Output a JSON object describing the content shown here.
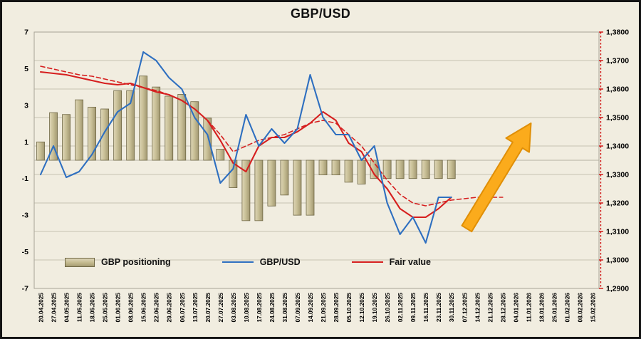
{
  "title": "GBP/USD",
  "legend": {
    "positioning": "GBP positioning",
    "pair": "GBP/USD",
    "fair": "Fair value"
  },
  "colors": {
    "background": "#f1ede0",
    "grid": "#c6c2b2",
    "plot_border": "#a8a496",
    "bar_fill_light": "#ddd5b6",
    "bar_fill_mid": "#c9c097",
    "bar_fill_dark": "#a29871",
    "bar_edge": "#6f6744",
    "line_pair": "#2e6fc0",
    "line_fair": "#d61f1f",
    "right_axis_ticks": "#cc0000",
    "arrow_fill": "#fbab1c",
    "arrow_edge": "#e08f07",
    "text": "#000000"
  },
  "chart_data": {
    "type": "bar+line combo, dual axis",
    "title": "GBP/USD",
    "categories": [
      "20.04.2025",
      "27.04.2025",
      "04.05.2025",
      "11.05.2025",
      "18.05.2025",
      "25.05.2025",
      "01.06.2025",
      "08.06.2025",
      "15.06.2025",
      "22.06.2025",
      "29.06.2025",
      "06.07.2025",
      "13.07.2025",
      "20.07.2025",
      "27.07.2025",
      "03.08.2025",
      "10.08.2025",
      "17.08.2025",
      "24.08.2025",
      "31.08.2025",
      "07.09.2025",
      "14.09.2025",
      "21.09.2025",
      "28.09.2025",
      "05.10.2025",
      "12.10.2025",
      "19.10.2025",
      "26.10.2025",
      "02.11.2025",
      "09.11.2025",
      "16.11.2025",
      "23.11.2025",
      "30.11.2025",
      "07.12.2025",
      "14.12.2025",
      "21.12.2025",
      "28.12.2025",
      "04.01.2026",
      "11.01.2026",
      "18.01.2026",
      "25.01.2026",
      "01.02.2026",
      "08.02.2026",
      "15.02.2026"
    ],
    "left_axis": {
      "min": -7,
      "max": 7,
      "ticks": [
        7,
        5,
        3,
        1,
        -1,
        -3,
        -5,
        -7
      ]
    },
    "right_axis": {
      "min": 1.29,
      "max": 1.38,
      "tick_step": 0.01,
      "tick_labels": [
        "1,3800",
        "1,3700",
        "1,3600",
        "1,3500",
        "1,3400",
        "1,3300",
        "1,3200",
        "1,3100",
        "1,3000",
        "1,2900"
      ]
    },
    "series": [
      {
        "name": "GBP positioning",
        "type": "bar",
        "axis": "left",
        "color": "#c9c097",
        "values": [
          1.0,
          2.6,
          2.5,
          3.3,
          2.9,
          2.8,
          3.8,
          3.8,
          4.6,
          4.0,
          3.5,
          3.6,
          3.2,
          2.3,
          0.6,
          -1.5,
          -3.3,
          -3.3,
          -2.5,
          -1.9,
          -3.0,
          -3.0,
          -0.8,
          -0.8,
          -1.2,
          -1.3,
          -1.0,
          -1.0,
          -1.0,
          -1.0,
          -1.0,
          -1.0,
          -1.0
        ]
      },
      {
        "name": "Fair value (model, dashed)",
        "type": "line-dashed",
        "axis": "right",
        "color": "#d61f1f",
        "values": [
          1.368,
          1.367,
          1.366,
          1.365,
          1.3645,
          1.3635,
          1.3625,
          1.3615,
          1.3605,
          1.3595,
          1.358,
          1.356,
          1.353,
          1.349,
          1.344,
          1.338,
          1.34,
          1.342,
          1.343,
          1.344,
          1.346,
          1.348,
          1.349,
          1.348,
          1.344,
          1.34,
          1.334,
          1.328,
          1.323,
          1.32,
          1.319,
          1.32,
          1.321,
          1.3215,
          1.322,
          1.322,
          1.322
        ]
      },
      {
        "name": "Fair value",
        "type": "line",
        "axis": "right",
        "color": "#d61f1f",
        "values": [
          1.366,
          1.3655,
          1.365,
          1.364,
          1.363,
          1.362,
          1.3615,
          1.362,
          1.3605,
          1.359,
          1.358,
          1.356,
          1.353,
          1.349,
          1.342,
          1.334,
          1.331,
          1.34,
          1.343,
          1.343,
          1.345,
          1.348,
          1.352,
          1.349,
          1.341,
          1.338,
          1.33,
          1.325,
          1.318,
          1.315,
          1.315,
          1.318,
          1.322
        ]
      },
      {
        "name": "GBP/USD",
        "type": "line",
        "axis": "right",
        "color": "#2e6fc0",
        "values": [
          1.33,
          1.34,
          1.329,
          1.331,
          1.337,
          1.345,
          1.352,
          1.355,
          1.373,
          1.37,
          1.364,
          1.36,
          1.35,
          1.344,
          1.327,
          1.332,
          1.351,
          1.34,
          1.346,
          1.341,
          1.346,
          1.365,
          1.35,
          1.344,
          1.344,
          1.335,
          1.34,
          1.32,
          1.309,
          1.315,
          1.306,
          1.322,
          1.322
        ]
      }
    ],
    "annotation_arrow": {
      "x1_index": 33.2,
      "y1_value": 1.311,
      "x2_index": 38.2,
      "y2_value": 1.348
    }
  }
}
